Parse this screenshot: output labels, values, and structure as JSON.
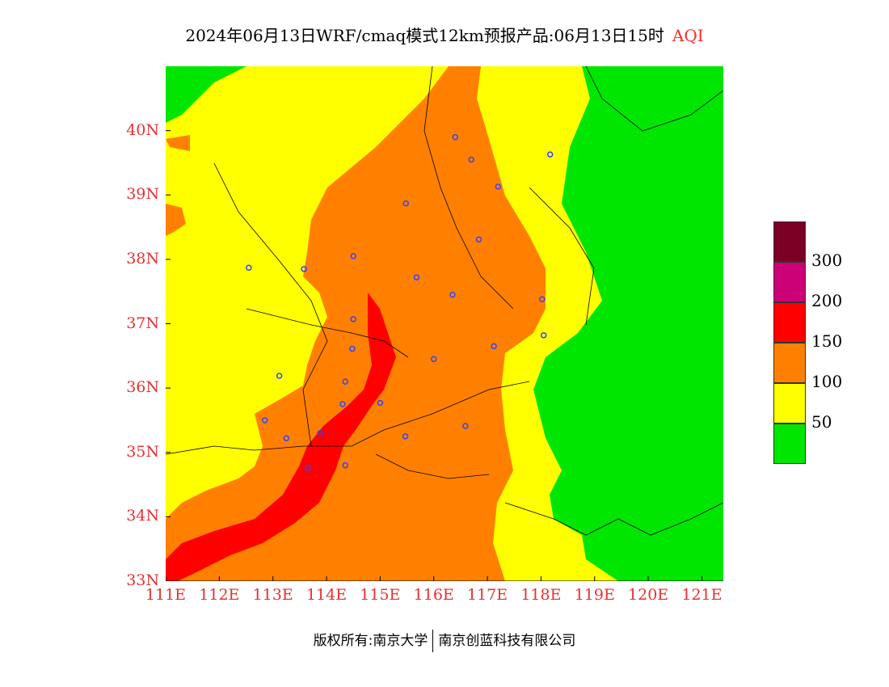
{
  "title": {
    "main": "2024年06月13日WRF/cmaq模式12km预报产品:06月13日15时",
    "variable": "AQI"
  },
  "map": {
    "lon_range": [
      111,
      121.4
    ],
    "lat_range": [
      33,
      41
    ],
    "lat_ticks": [
      "33N",
      "34N",
      "35N",
      "36N",
      "37N",
      "38N",
      "39N",
      "40N"
    ],
    "lon_ticks": [
      "111E",
      "112E",
      "113E",
      "114E",
      "115E",
      "116E",
      "117E",
      "118E",
      "119E",
      "120E",
      "121E"
    ],
    "colors": {
      "good": "#00e600",
      "moderate": "#ffff00",
      "usg": "#ff8000",
      "unhealthy": "#ff0000",
      "very_unhealthy": "#cc0077",
      "hazardous": "#7a0026"
    },
    "city_markers": [
      [
        116.4,
        39.9
      ],
      [
        116.7,
        39.55
      ],
      [
        117.2,
        39.13
      ],
      [
        118.17,
        39.63
      ],
      [
        115.48,
        38.87
      ],
      [
        116.84,
        38.31
      ],
      [
        114.5,
        38.05
      ],
      [
        115.68,
        37.72
      ],
      [
        116.35,
        37.45
      ],
      [
        114.5,
        37.07
      ],
      [
        114.48,
        36.61
      ],
      [
        114.35,
        36.1
      ],
      [
        114.3,
        35.75
      ],
      [
        115.0,
        35.77
      ],
      [
        115.47,
        35.25
      ],
      [
        116.0,
        36.45
      ],
      [
        116.59,
        35.41
      ],
      [
        117.12,
        36.65
      ],
      [
        118.05,
        36.82
      ],
      [
        118.02,
        37.38
      ],
      [
        113.88,
        35.3
      ],
      [
        113.25,
        35.22
      ],
      [
        112.85,
        35.5
      ],
      [
        113.12,
        36.19
      ],
      [
        112.55,
        37.87
      ],
      [
        113.58,
        37.85
      ],
      [
        114.35,
        34.8
      ],
      [
        113.65,
        34.76
      ]
    ]
  },
  "legend": {
    "labels": [
      "300",
      "200",
      "150",
      "100",
      "50"
    ],
    "swatch_colors": [
      "#7a0026",
      "#cc0077",
      "#ff0000",
      "#ff8000",
      "#ffff00",
      "#00e600"
    ]
  },
  "footer": {
    "left": "版权所有:南京大学",
    "right": "南京创蓝科技有限公司"
  }
}
